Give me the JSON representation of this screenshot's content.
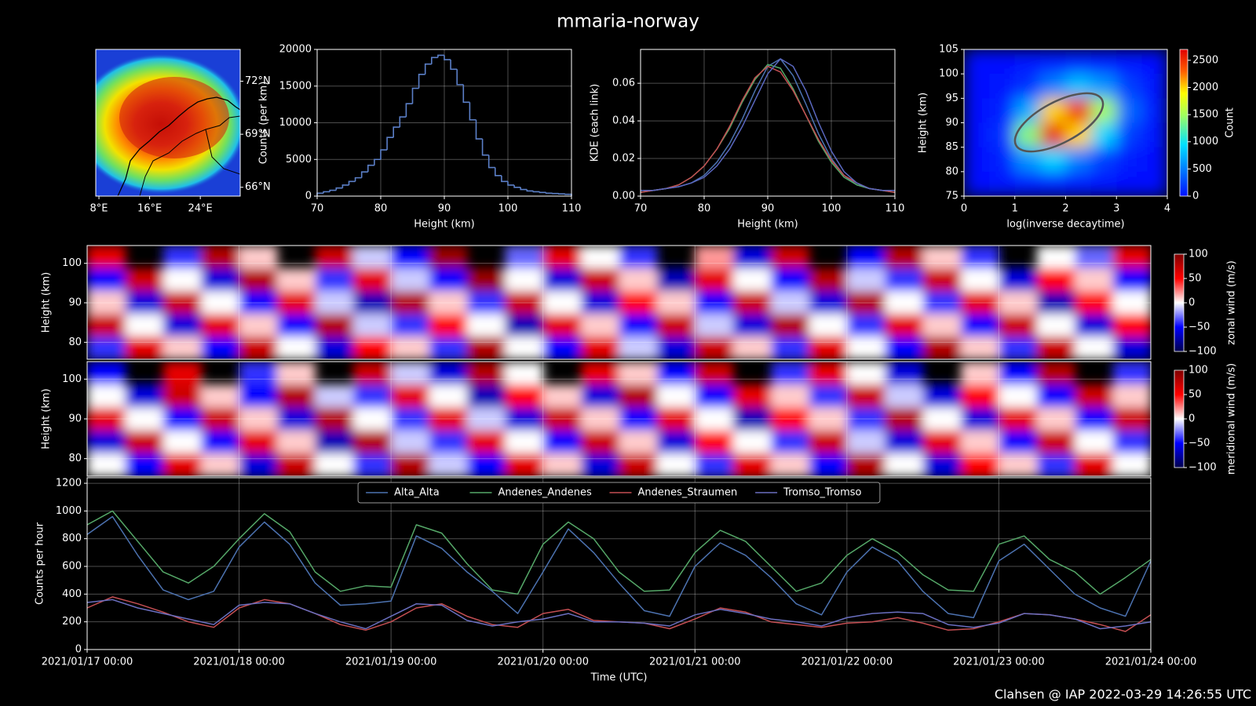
{
  "title": "mmaria-norway",
  "footer": "Clahsen @ IAP 2022-03-29 14:26:55 UTC",
  "chart_data": [
    {
      "type": "map",
      "xlim": [
        7.5,
        30.3
      ],
      "ylim": [
        65.5,
        73.8
      ],
      "xticks": [
        {
          "value": 8,
          "label": "8°E"
        },
        {
          "value": 16,
          "label": "16°E"
        },
        {
          "value": 24,
          "label": "24°E"
        }
      ],
      "yticks": [
        {
          "value": 66,
          "label": "66°N"
        },
        {
          "value": 69,
          "label": "69°N"
        },
        {
          "value": 72,
          "label": "72°N"
        }
      ]
    },
    {
      "type": "histogram",
      "xlabel": "Height (km)",
      "ylabel": "Counts (per km)",
      "color": "#5b7fc7",
      "bins": [
        70,
        71,
        72,
        73,
        74,
        75,
        76,
        77,
        78,
        79,
        80,
        81,
        82,
        83,
        84,
        85,
        86,
        87,
        88,
        89,
        90,
        91,
        92,
        93,
        94,
        95,
        96,
        97,
        98,
        99,
        100,
        101,
        102,
        103,
        104,
        105,
        106,
        107,
        108,
        109,
        110
      ],
      "values": [
        400,
        600,
        800,
        1100,
        1500,
        2000,
        2500,
        3300,
        4200,
        5000,
        6300,
        8000,
        9400,
        10800,
        12600,
        14700,
        16600,
        18000,
        18900,
        19200,
        18600,
        17300,
        15200,
        12800,
        10400,
        7800,
        5600,
        3900,
        2800,
        2000,
        1500,
        1200,
        900,
        700,
        600,
        500,
        400,
        350,
        300,
        250
      ],
      "xlim": [
        70,
        110
      ],
      "ylim": [
        0,
        20000
      ],
      "xticks": [
        70,
        80,
        90,
        100,
        110
      ],
      "yticks": [
        0,
        5000,
        10000,
        15000,
        20000
      ],
      "grid": true
    },
    {
      "type": "line",
      "xlabel": "Height (km)",
      "ylabel": "KDE (each link)",
      "x": [
        70,
        72,
        74,
        76,
        78,
        80,
        82,
        84,
        86,
        88,
        90,
        92,
        94,
        96,
        98,
        100,
        102,
        104,
        106,
        108,
        110
      ],
      "series": [
        {
          "color": "#4c72b0",
          "values": [
            0.003,
            0.003,
            0.004,
            0.005,
            0.007,
            0.011,
            0.018,
            0.028,
            0.041,
            0.056,
            0.069,
            0.073,
            0.064,
            0.049,
            0.033,
            0.02,
            0.011,
            0.006,
            0.004,
            0.003,
            0.003
          ]
        },
        {
          "color": "#55a868",
          "values": [
            0.002,
            0.003,
            0.004,
            0.006,
            0.01,
            0.016,
            0.025,
            0.036,
            0.05,
            0.062,
            0.07,
            0.068,
            0.057,
            0.043,
            0.029,
            0.018,
            0.01,
            0.006,
            0.004,
            0.003,
            0.002
          ]
        },
        {
          "color": "#c44e52",
          "values": [
            0.002,
            0.003,
            0.004,
            0.006,
            0.01,
            0.016,
            0.025,
            0.037,
            0.051,
            0.063,
            0.069,
            0.066,
            0.056,
            0.043,
            0.03,
            0.019,
            0.011,
            0.007,
            0.004,
            0.003,
            0.002
          ]
        },
        {
          "color": "#5a68c0",
          "values": [
            0.003,
            0.003,
            0.004,
            0.005,
            0.007,
            0.01,
            0.016,
            0.025,
            0.037,
            0.051,
            0.065,
            0.073,
            0.069,
            0.056,
            0.039,
            0.024,
            0.013,
            0.007,
            0.004,
            0.003,
            0.003
          ]
        }
      ],
      "xlim": [
        70,
        110
      ],
      "ylim": [
        0,
        0.078
      ],
      "xticks": [
        70,
        80,
        90,
        100,
        110
      ],
      "yticks": [
        {
          "value": 0,
          "label": "0.00"
        },
        {
          "value": 0.02,
          "label": "0.02"
        },
        {
          "value": 0.04,
          "label": "0.04"
        },
        {
          "value": 0.06,
          "label": "0.06"
        }
      ],
      "grid": true
    },
    {
      "type": "heatmap",
      "xlabel": "log(inverse decaytime)",
      "ylabel": "Height (km)",
      "clabel": "Count",
      "colormap": "jet",
      "xlim": [
        0,
        4
      ],
      "ylim": [
        75,
        105
      ],
      "clim": [
        0,
        2700
      ],
      "xticks": [
        0,
        1,
        2,
        3,
        4
      ],
      "yticks": [
        75,
        80,
        85,
        90,
        95,
        100,
        105
      ],
      "cticks": [
        0,
        500,
        1000,
        1500,
        2000,
        2500
      ],
      "grid": false,
      "z": [
        [
          0,
          0,
          20,
          60,
          80,
          60,
          20,
          0
        ],
        [
          0,
          20,
          150,
          500,
          800,
          600,
          200,
          30
        ],
        [
          0,
          80,
          700,
          2000,
          2500,
          1500,
          400,
          50
        ],
        [
          0,
          150,
          1400,
          2600,
          2000,
          900,
          200,
          20
        ],
        [
          0,
          80,
          600,
          900,
          500,
          200,
          50,
          0
        ],
        [
          0,
          10,
          60,
          80,
          50,
          20,
          0,
          0
        ]
      ]
    },
    {
      "type": "heatmap",
      "ylabel": "Height (km)",
      "clabel": "zonal wind (m/s)",
      "colormap": "seismic",
      "xlim": [
        "2021/01/17 00:00",
        "2021/01/24 00:00"
      ],
      "ylim": [
        75.7,
        104.5
      ],
      "clim": [
        -100,
        100
      ],
      "yticks": [
        80,
        90,
        100
      ],
      "cticks": [
        {
          "value": -100,
          "label": "−100"
        },
        {
          "value": -50,
          "label": "−50"
        },
        0,
        50,
        100
      ],
      "grid": true,
      "z": [
        [
          60,
          null,
          -40,
          80,
          10,
          null,
          70,
          -10,
          -50,
          90,
          null,
          -30,
          60,
          0,
          -40,
          null,
          20,
          -60,
          70,
          null,
          -50,
          80,
          10,
          -40,
          null,
          0,
          -30,
          60
        ],
        [
          -50,
          70,
          0,
          -60,
          80,
          10,
          -40,
          60,
          -10,
          -50,
          90,
          0,
          -60,
          70,
          10,
          -70,
          60,
          0,
          -50,
          80,
          -10,
          -40,
          70,
          0,
          -60,
          50,
          10,
          -50
        ],
        [
          10,
          -60,
          70,
          0,
          -50,
          60,
          -10,
          -70,
          80,
          10,
          -40,
          70,
          0,
          -60,
          50,
          10,
          -50,
          70,
          -10,
          -60,
          80,
          0,
          -40,
          60,
          10,
          -70,
          50,
          0
        ],
        [
          70,
          0,
          -60,
          60,
          10,
          -50,
          80,
          -10,
          -40,
          50,
          0,
          -70,
          60,
          10,
          -50,
          70,
          -10,
          -60,
          80,
          0,
          -40,
          60,
          10,
          -50,
          70,
          0,
          -60,
          50
        ],
        [
          -40,
          60,
          10,
          -50,
          70,
          0,
          -60,
          50,
          10,
          -40,
          80,
          0,
          -50,
          60,
          -10,
          -60,
          70,
          10,
          -40,
          60,
          0,
          -50,
          80,
          10,
          -40,
          70,
          0,
          -60
        ]
      ]
    },
    {
      "type": "heatmap",
      "ylabel": "Height (km)",
      "clabel": "meridional wind (m/s)",
      "colormap": "seismic",
      "xlim": [
        "2021/01/17 00:00",
        "2021/01/24 00:00"
      ],
      "ylim": [
        75.6,
        104.4
      ],
      "clim": [
        -100,
        100
      ],
      "yticks": [
        80,
        90,
        100
      ],
      "cticks": [
        {
          "value": -100,
          "label": "−100"
        },
        {
          "value": -50,
          "label": "−50"
        },
        0,
        50,
        100
      ],
      "grid": true,
      "z": [
        [
          -50,
          null,
          60,
          null,
          -40,
          10,
          null,
          70,
          -10,
          -60,
          80,
          0,
          null,
          60,
          10,
          -50,
          70,
          null,
          -40,
          60,
          0,
          -60,
          null,
          10,
          -50,
          80,
          null,
          -40
        ],
        [
          0,
          -60,
          70,
          10,
          -50,
          80,
          -10,
          -40,
          60,
          0,
          -70,
          50,
          10,
          -60,
          80,
          0,
          -50,
          60,
          10,
          -40,
          70,
          -10,
          -60,
          50,
          0,
          -50,
          70,
          10
        ],
        [
          60,
          0,
          -50,
          70,
          10,
          -60,
          80,
          0,
          -40,
          60,
          -10,
          -60,
          70,
          10,
          -50,
          60,
          0,
          -70,
          50,
          10,
          -40,
          80,
          0,
          -60,
          60,
          10,
          -50,
          70
        ],
        [
          -60,
          70,
          0,
          -50,
          60,
          10,
          -70,
          80,
          -10,
          -40,
          60,
          0,
          -50,
          70,
          10,
          -60,
          50,
          0,
          -40,
          70,
          -10,
          -60,
          60,
          10,
          -50,
          70,
          0,
          -40
        ],
        [
          0,
          -50,
          60,
          10,
          -60,
          70,
          0,
          -40,
          80,
          -10,
          -50,
          60,
          10,
          -60,
          70,
          0,
          -40,
          60,
          10,
          -50,
          80,
          0,
          -60,
          50,
          10,
          -40,
          60,
          0
        ]
      ]
    },
    {
      "type": "line",
      "xlabel": "Time (UTC)",
      "ylabel": "Counts per hour",
      "legend": "upper center",
      "x": [
        "2021/01/17 00:00",
        "2021/01/17 04:00",
        "2021/01/17 08:00",
        "2021/01/17 12:00",
        "2021/01/17 16:00",
        "2021/01/17 20:00",
        "2021/01/18 00:00",
        "2021/01/18 04:00",
        "2021/01/18 08:00",
        "2021/01/18 12:00",
        "2021/01/18 16:00",
        "2021/01/18 20:00",
        "2021/01/19 00:00",
        "2021/01/19 04:00",
        "2021/01/19 08:00",
        "2021/01/19 12:00",
        "2021/01/19 16:00",
        "2021/01/19 20:00",
        "2021/01/20 00:00",
        "2021/01/20 04:00",
        "2021/01/20 08:00",
        "2021/01/20 12:00",
        "2021/01/20 16:00",
        "2021/01/20 20:00",
        "2021/01/21 00:00",
        "2021/01/21 04:00",
        "2021/01/21 08:00",
        "2021/01/21 12:00",
        "2021/01/21 16:00",
        "2021/01/21 20:00",
        "2021/01/22 00:00",
        "2021/01/22 04:00",
        "2021/01/22 08:00",
        "2021/01/22 12:00",
        "2021/01/22 16:00",
        "2021/01/22 20:00",
        "2021/01/23 00:00",
        "2021/01/23 04:00",
        "2021/01/23 08:00",
        "2021/01/23 12:00",
        "2021/01/23 16:00",
        "2021/01/23 20:00",
        "2021/01/24 00:00"
      ],
      "series": [
        {
          "name": "Alta_Alta",
          "color": "#4c72b0",
          "values": [
            830,
            960,
            680,
            430,
            360,
            420,
            740,
            920,
            760,
            480,
            320,
            330,
            350,
            820,
            730,
            560,
            420,
            260,
            560,
            870,
            700,
            480,
            280,
            240,
            600,
            770,
            680,
            520,
            330,
            250,
            560,
            740,
            640,
            420,
            260,
            230,
            640,
            760,
            580,
            400,
            300,
            240,
            640
          ]
        },
        {
          "name": "Andenes_Andenes",
          "color": "#55a868",
          "values": [
            900,
            1000,
            780,
            560,
            480,
            600,
            800,
            980,
            850,
            560,
            420,
            460,
            450,
            900,
            840,
            620,
            430,
            400,
            760,
            920,
            800,
            560,
            420,
            430,
            700,
            860,
            780,
            600,
            420,
            480,
            680,
            800,
            700,
            540,
            430,
            420,
            760,
            820,
            650,
            560,
            400,
            520,
            650
          ]
        },
        {
          "name": "Andenes_Straumen",
          "color": "#c44e52",
          "values": [
            300,
            380,
            330,
            270,
            200,
            160,
            300,
            360,
            330,
            260,
            180,
            140,
            200,
            300,
            330,
            240,
            180,
            160,
            260,
            290,
            210,
            200,
            190,
            150,
            220,
            300,
            270,
            200,
            180,
            160,
            190,
            200,
            230,
            190,
            140,
            150,
            200,
            260,
            250,
            220,
            180,
            130,
            250
          ]
        },
        {
          "name": "Tromso_Tromso",
          "color": "#6a6fc0",
          "values": [
            340,
            360,
            300,
            260,
            220,
            180,
            320,
            340,
            330,
            260,
            200,
            150,
            240,
            330,
            320,
            210,
            170,
            200,
            220,
            260,
            200,
            200,
            190,
            170,
            250,
            290,
            260,
            220,
            200,
            170,
            230,
            260,
            270,
            260,
            180,
            160,
            190,
            260,
            250,
            220,
            150,
            170,
            200
          ]
        }
      ],
      "xlim": [
        "2021/01/17 00:00",
        "2021/01/24 00:00"
      ],
      "ylim": [
        0,
        1240
      ],
      "xticks": [
        "2021/01/17 00:00",
        "2021/01/18 00:00",
        "2021/01/19 00:00",
        "2021/01/20 00:00",
        "2021/01/21 00:00",
        "2021/01/22 00:00",
        "2021/01/23 00:00",
        "2021/01/24 00:00"
      ],
      "yticks": [
        0,
        200,
        400,
        600,
        800,
        1000,
        1200
      ],
      "grid": true
    }
  ]
}
